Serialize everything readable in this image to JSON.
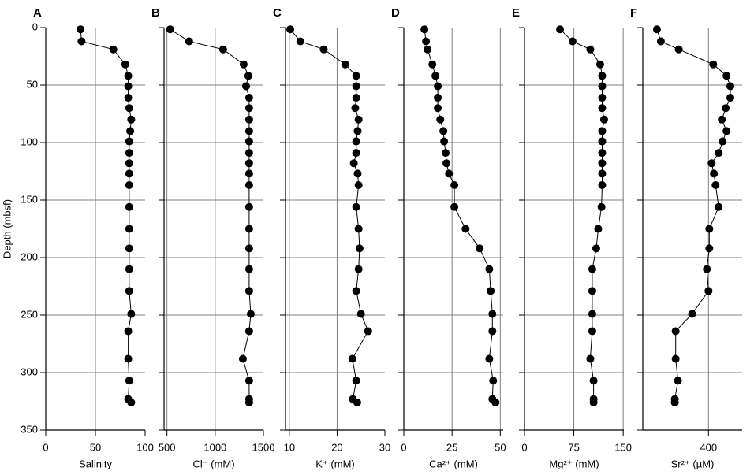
{
  "chart_data": [
    {
      "type": "scatter",
      "label": "A",
      "xlabel": "Salinity",
      "ylabel": "Depth (mbsf)",
      "x": [
        35,
        36,
        68,
        80,
        83,
        83,
        83,
        84,
        86,
        85,
        84,
        84,
        84,
        84,
        84,
        84,
        84,
        84,
        84,
        84,
        86,
        83,
        83,
        84,
        83,
        86
      ],
      "y": [
        1.5,
        12,
        19,
        32,
        42,
        51,
        61,
        70,
        80,
        90,
        99,
        109,
        118,
        127,
        137,
        156,
        175,
        192,
        210,
        229,
        249,
        264,
        288,
        307,
        323,
        326
      ],
      "xlim": [
        0,
        100
      ],
      "xticks": [
        0,
        50,
        100
      ],
      "ylim": [
        0,
        350
      ],
      "yticks": [
        0,
        50,
        100,
        150,
        200,
        250,
        300,
        350
      ],
      "grid": true,
      "color": "#000000"
    },
    {
      "type": "scatter",
      "label": "B",
      "xlabel": "Cl⁻ (mM)",
      "x": [
        533,
        730,
        1082,
        1295,
        1344,
        1320,
        1352,
        1352,
        1352,
        1352,
        1352,
        1352,
        1352,
        1352,
        1352,
        1352,
        1352,
        1352,
        1352,
        1352,
        1369,
        1352,
        1287,
        1352,
        1352,
        1352
      ],
      "y": [
        1.5,
        12,
        19,
        32,
        42,
        51,
        61,
        70,
        80,
        90,
        99,
        109,
        118,
        127,
        137,
        156,
        175,
        192,
        210,
        229,
        249,
        264,
        288,
        307,
        323,
        326
      ],
      "xlim": [
        470,
        1500
      ],
      "xticks": [
        500,
        1000,
        1500
      ],
      "ylim": [
        0,
        350
      ],
      "yticks": [
        0,
        50,
        100,
        150,
        200,
        250,
        300,
        350
      ],
      "grid": true,
      "color": "#000000"
    },
    {
      "type": "scatter",
      "label": "C",
      "xlabel": "K⁺ (mM)",
      "x": [
        10.2,
        12.3,
        17.2,
        21.7,
        24,
        24,
        24,
        23.8,
        24.5,
        24.3,
        24,
        24,
        23.5,
        24.3,
        24.5,
        24,
        24.5,
        24.7,
        24.5,
        24,
        25,
        26.5,
        23.2,
        24,
        23.3,
        24.2
      ],
      "y": [
        1.5,
        12,
        19,
        32,
        42,
        51,
        61,
        70,
        80,
        90,
        99,
        109,
        118,
        127,
        137,
        156,
        175,
        192,
        210,
        229,
        249,
        264,
        288,
        307,
        323,
        326
      ],
      "xlim": [
        9.2,
        30
      ],
      "xticks": [
        10,
        20,
        30
      ],
      "ylim": [
        0,
        350
      ],
      "yticks": [
        0,
        50,
        100,
        150,
        200,
        250,
        300,
        350
      ],
      "grid": true,
      "color": "#000000"
    },
    {
      "type": "scatter",
      "label": "D",
      "xlabel": "Ca²⁺ (mM)",
      "x": [
        10.7,
        11.5,
        12.3,
        14.8,
        16.4,
        17.6,
        17.6,
        17.6,
        18.9,
        20.5,
        20.9,
        21.7,
        22.1,
        23.4,
        26.2,
        26.2,
        32,
        39.3,
        44.3,
        45,
        45.9,
        45.9,
        44.3,
        46.3,
        45.9,
        47.5
      ],
      "y": [
        1.5,
        12,
        19,
        32,
        42,
        51,
        61,
        70,
        80,
        90,
        99,
        109,
        118,
        127,
        137,
        156,
        175,
        192,
        210,
        229,
        249,
        264,
        288,
        307,
        323,
        326
      ],
      "xlim": [
        0,
        51.5
      ],
      "xticks": [
        0,
        25,
        50
      ],
      "ylim": [
        0,
        350
      ],
      "yticks": [
        0,
        50,
        100,
        150,
        200,
        250,
        300,
        350
      ],
      "grid": true,
      "color": "#000000"
    },
    {
      "type": "scatter",
      "label": "E",
      "xlabel": "Mg²⁺ (mM)",
      "x": [
        54,
        73,
        100,
        115,
        118,
        118,
        118,
        118,
        121,
        118,
        118,
        118,
        118,
        118,
        118,
        117,
        112,
        109,
        103,
        103,
        103,
        103,
        100,
        105,
        105,
        105
      ],
      "y": [
        1.5,
        12,
        19,
        32,
        42,
        51,
        61,
        70,
        80,
        90,
        99,
        109,
        118,
        127,
        137,
        156,
        175,
        192,
        210,
        229,
        249,
        264,
        288,
        307,
        323,
        326
      ],
      "xlim": [
        0,
        151
      ],
      "xticks": [
        0,
        75,
        150
      ],
      "ylim": [
        0,
        350
      ],
      "yticks": [
        0,
        50,
        100,
        150,
        200,
        250,
        300,
        350
      ],
      "grid": true,
      "color": "#000000"
    },
    {
      "type": "scatter",
      "label": "F",
      "xlabel": "Sr²⁺ (µM)",
      "x": [
        86,
        110,
        219,
        429,
        510,
        533,
        533,
        505,
        481,
        510,
        486,
        462,
        419,
        433,
        443,
        462,
        405,
        405,
        390,
        400,
        300,
        200,
        200,
        214,
        195,
        195
      ],
      "y": [
        1.5,
        12,
        19,
        32,
        42,
        51,
        61,
        70,
        80,
        90,
        99,
        109,
        118,
        127,
        137,
        156,
        175,
        192,
        210,
        229,
        249,
        264,
        288,
        307,
        323,
        326
      ],
      "xlim": [
        0,
        605
      ],
      "xticks": [
        400
      ],
      "ylim": [
        0,
        350
      ],
      "yticks": [
        0,
        50,
        100,
        150,
        200,
        250,
        300,
        350
      ],
      "grid": true,
      "color": "#000000"
    }
  ]
}
